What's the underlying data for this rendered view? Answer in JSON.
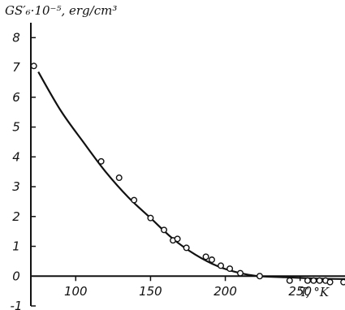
{
  "chart_data": {
    "type": "scatter",
    "title": "",
    "xlabel": "T, °K",
    "ylabel": "GS′₆·10⁻⁵, erg/cm³",
    "xlim": [
      70,
      280
    ],
    "ylim": [
      -1,
      8.5
    ],
    "x_ticks": [
      100,
      150,
      200,
      250
    ],
    "y_ticks": [
      -1,
      0,
      1,
      2,
      3,
      4,
      5,
      6,
      7,
      8
    ],
    "grid": false,
    "series": [
      {
        "kind": "points",
        "x": [
          72,
          117,
          129,
          139,
          150,
          159,
          165,
          168,
          174,
          187,
          191,
          197,
          203,
          210,
          223,
          243,
          255,
          259,
          263,
          267,
          270,
          279
        ],
        "y": [
          7.05,
          3.85,
          3.3,
          2.55,
          1.95,
          1.55,
          1.2,
          1.25,
          0.95,
          0.65,
          0.55,
          0.35,
          0.25,
          0.1,
          0.0,
          -0.15,
          -0.15,
          -0.15,
          -0.15,
          -0.15,
          -0.2,
          -0.2
        ]
      },
      {
        "kind": "fit_curve",
        "x": [
          75,
          90,
          105,
          120,
          135,
          150,
          165,
          180,
          195,
          210,
          222,
          240,
          260,
          280
        ],
        "y": [
          6.85,
          5.55,
          4.5,
          3.5,
          2.65,
          1.95,
          1.25,
          0.72,
          0.33,
          0.1,
          0.0,
          -0.04,
          -0.08,
          -0.1
        ]
      }
    ]
  }
}
